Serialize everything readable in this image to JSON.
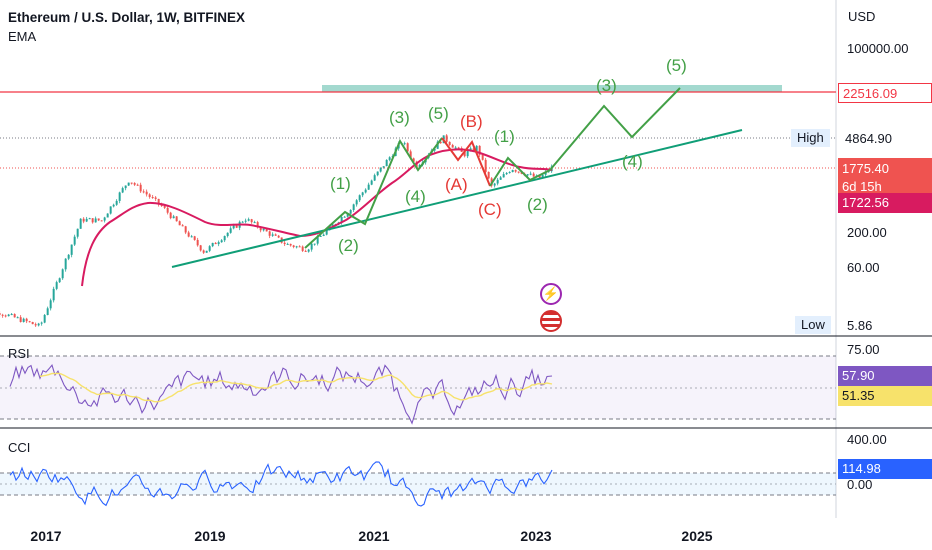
{
  "header": {
    "symbol": "Ethereum / U.S. Dollar, 1W, BITFINEX",
    "indicator": "EMA"
  },
  "price_axis": {
    "currency": "USD",
    "ticks": [
      "100000.00",
      "200.00",
      "60.00"
    ],
    "last_price": "1775.40",
    "countdown": "6d 15h",
    "ema_value": "1722.56",
    "resistance": "22516.09",
    "high_label": "High",
    "high_value": "4864.90",
    "low_label": "Low",
    "low_value": "5.86"
  },
  "rsi_pane": {
    "label": "RSI",
    "tick": "75.00",
    "rsi_value": "57.90",
    "ma_value": "51.35"
  },
  "cci_pane": {
    "label": "CCI",
    "tick_top": "400.00",
    "tick_mid": "0.00",
    "cci_value": "114.98"
  },
  "time_axis": [
    "2017",
    "2019",
    "2021",
    "2023",
    "2025"
  ],
  "wave_labels": {
    "green": [
      "(1)",
      "(2)",
      "(3)",
      "(4)",
      "(5)",
      "(1)",
      "(2)",
      "(3)",
      "(4)",
      "(5)"
    ],
    "red": [
      "(B)",
      "(A)",
      "(C)"
    ]
  },
  "colors": {
    "wave_green": "#43a047",
    "wave_red": "#e53935",
    "trendline": "#109e77",
    "ema_line": "#d81b60",
    "resistance_line": "#f23645",
    "zone": "#a3d9cf",
    "rsi_line": "#7e57c2",
    "rsi_ma": "#f7e26b",
    "cci_line": "#2962ff",
    "up": "#26a69a",
    "down": "#ef5350"
  },
  "icons": [
    "lightning-icon",
    "us-flag-icon"
  ],
  "chart_data": {
    "type": "candlestick",
    "title": "Ethereum / U.S. Dollar, 1W, BITFINEX",
    "scale": "log",
    "x_ticks": [
      "2017",
      "2019",
      "2021",
      "2023",
      "2025"
    ],
    "y_ticks": [
      100000,
      200,
      60
    ],
    "series": [
      {
        "name": "EMA",
        "last": 1722.56
      },
      {
        "name": "RSI",
        "last": 57.9,
        "ma": 51.35
      },
      {
        "name": "CCI",
        "last": 114.98
      }
    ],
    "price_path": [
      {
        "date": "2016-03",
        "price": 9
      },
      {
        "date": "2016-06",
        "price": 13
      },
      {
        "date": "2016-12",
        "price": 8
      },
      {
        "date": "2017-06",
        "price": 300
      },
      {
        "date": "2017-09",
        "price": 290
      },
      {
        "date": "2018-01",
        "price": 1150
      },
      {
        "date": "2018-06",
        "price": 450
      },
      {
        "date": "2018-12",
        "price": 100
      },
      {
        "date": "2019-06",
        "price": 310
      },
      {
        "date": "2019-12",
        "price": 130
      },
      {
        "date": "2020-03",
        "price": 110
      },
      {
        "date": "2020-09",
        "price": 390
      },
      {
        "date": "2021-01",
        "price": 1300
      },
      {
        "date": "2021-05",
        "price": 4300
      },
      {
        "date": "2021-07",
        "price": 1800
      },
      {
        "date": "2021-11",
        "price": 4800
      },
      {
        "date": "2022-02",
        "price": 2700
      },
      {
        "date": "2022-04",
        "price": 3500
      },
      {
        "date": "2022-06",
        "price": 900
      },
      {
        "date": "2022-09",
        "price": 1700
      },
      {
        "date": "2023-01",
        "price": 1200
      },
      {
        "date": "2023-03",
        "price": 1775
      }
    ],
    "ema_path": [
      {
        "date": "2017-06",
        "price": 45
      },
      {
        "date": "2017-09",
        "price": 230
      },
      {
        "date": "2018-02",
        "price": 640
      },
      {
        "date": "2018-08",
        "price": 430
      },
      {
        "date": "2019-06",
        "price": 230
      },
      {
        "date": "2020-03",
        "price": 200
      },
      {
        "date": "2020-09",
        "price": 300
      },
      {
        "date": "2021-03",
        "price": 1200
      },
      {
        "date": "2021-08",
        "price": 2300
      },
      {
        "date": "2022-02",
        "price": 2900
      },
      {
        "date": "2022-07",
        "price": 1900
      },
      {
        "date": "2023-03",
        "price": 1722.56
      }
    ],
    "projection": [
      {
        "date": "2023-03",
        "price": 1775
      },
      {
        "date": "2023-12",
        "price": 9000
      },
      {
        "date": "2024-04",
        "price": 5000
      },
      {
        "date": "2024-11",
        "price": 22516
      }
    ],
    "resistance": 22516.09,
    "high": 4864.9,
    "low": 5.86,
    "trendline": [
      {
        "date": "2018-06",
        "price": 60
      },
      {
        "date": "2025-12",
        "price": 5500
      }
    ]
  }
}
